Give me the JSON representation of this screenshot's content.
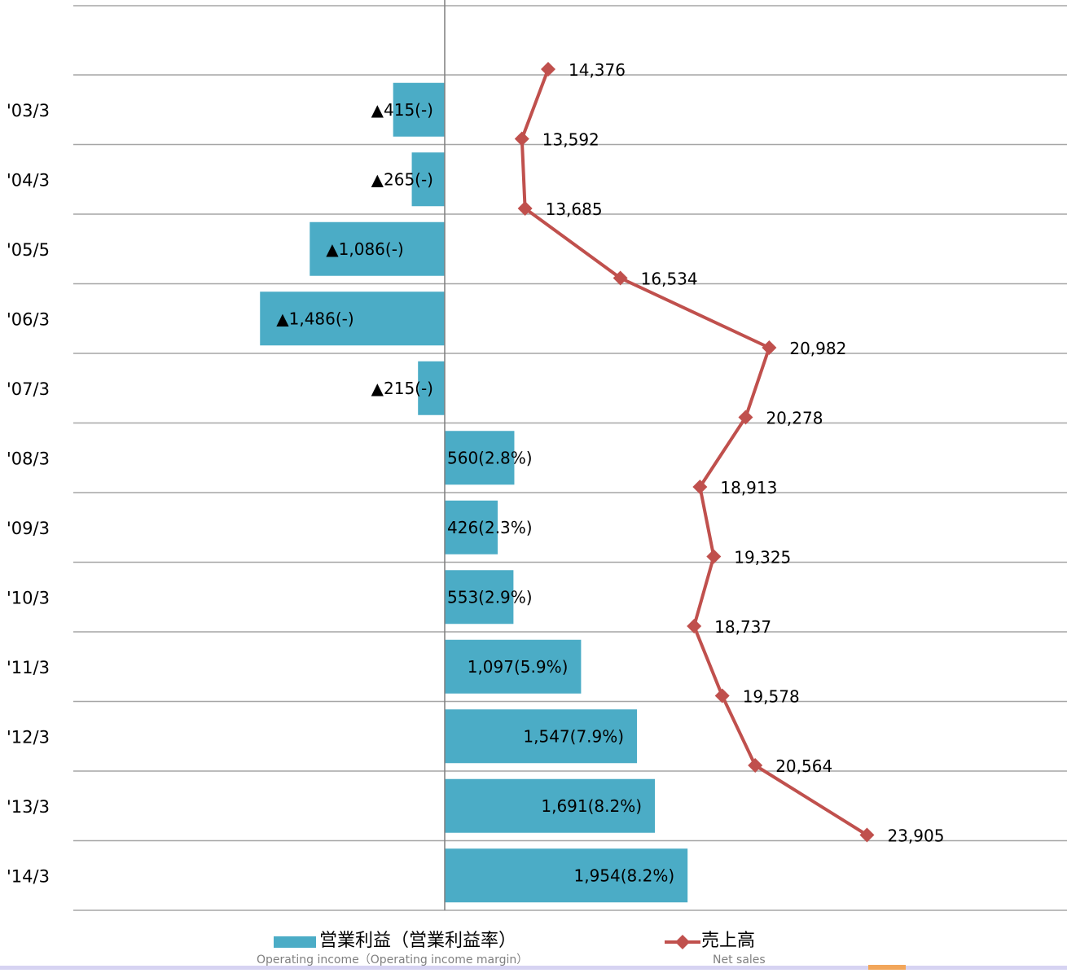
{
  "chart_data": {
    "type": "bar",
    "orientation": "horizontal",
    "categories": [
      "'03/3",
      "'04/3",
      "'05/5",
      "'06/3",
      "'07/3",
      "'08/3",
      "'09/3",
      "'10/3",
      "'11/3",
      "'12/3",
      "'13/3",
      "'14/3"
    ],
    "series": [
      {
        "name": "営業利益（営業利益率）",
        "name_en": "Operating income（Operating income margin）",
        "kind": "bar",
        "color": "#4bacc6",
        "values": [
          -415,
          -265,
          -1086,
          -1486,
          -215,
          560,
          426,
          553,
          1097,
          1547,
          1691,
          1954
        ],
        "labels": [
          "▲415(-)",
          "▲265(-)",
          "▲1,086(-)",
          "▲1,486(-)",
          "▲215(-)",
          "560(2.8%)",
          "426(2.3%)",
          "553(2.9%)",
          "1,097(5.9%)",
          "1,547(7.9%)",
          "1,691(8.2%)",
          "1,954(8.2%)"
        ]
      },
      {
        "name": "売上高",
        "name_en": "Net sales",
        "kind": "line",
        "color": "#c0504d",
        "values": [
          14376,
          13592,
          13685,
          16534,
          20982,
          20278,
          18913,
          19325,
          18737,
          19578,
          20564,
          23905
        ],
        "labels": [
          "14,376",
          "13,592",
          "13,685",
          "16,534",
          "20,982",
          "20,278",
          "18,913",
          "19,325",
          "18,737",
          "19,578",
          "20,564",
          "23,905"
        ]
      }
    ],
    "title": "",
    "grid": true,
    "legend_position": "bottom"
  }
}
